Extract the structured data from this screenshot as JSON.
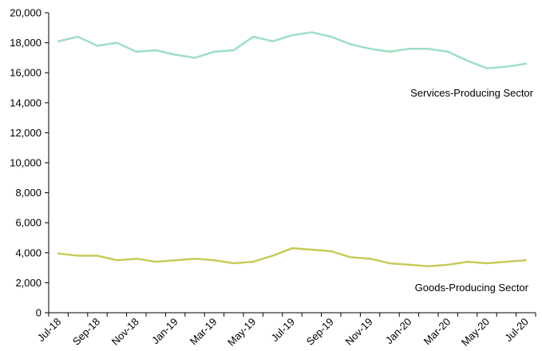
{
  "chart_data": {
    "type": "line",
    "title": "",
    "xlabel": "",
    "ylabel": "",
    "ylim": [
      0,
      20000
    ],
    "grid": false,
    "x": [
      "Jul-18",
      "Aug-18",
      "Sep-18",
      "Oct-18",
      "Nov-18",
      "Dec-18",
      "Jan-19",
      "Feb-19",
      "Mar-19",
      "Apr-19",
      "May-19",
      "Jun-19",
      "Jul-19",
      "Aug-19",
      "Sep-19",
      "Oct-19",
      "Nov-19",
      "Dec-19",
      "Jan-20",
      "Feb-20",
      "Mar-20",
      "Apr-20",
      "May-20",
      "Jun-20",
      "Jul-20"
    ],
    "x_tick_labels": [
      "Jul-18",
      "Sep-18",
      "Nov-18",
      "Jan-19",
      "Mar-19",
      "May-19",
      "Jul-19",
      "Sep-19",
      "Nov-19",
      "Jan-20",
      "Mar-20",
      "May-20",
      "Jul-20"
    ],
    "y_ticks": [
      0,
      2000,
      4000,
      6000,
      8000,
      10000,
      12000,
      14000,
      16000,
      18000,
      20000
    ],
    "y_tick_labels": [
      "0",
      "2,000",
      "4,000",
      "6,000",
      "8,000",
      "10,000",
      "12,000",
      "14,000",
      "16,000",
      "18,000",
      "20,000"
    ],
    "series": [
      {
        "name": "Services-Producing Sector",
        "color": "#9ee0c2",
        "values": [
          18100,
          18400,
          17800,
          18000,
          17400,
          17500,
          17200,
          17000,
          17400,
          17500,
          18400,
          18100,
          18500,
          18700,
          18400,
          17900,
          17600,
          17400,
          17600,
          17600,
          17400,
          16800,
          16300,
          16400,
          16600
        ]
      },
      {
        "name": "Goods-Producing Sector",
        "color": "#c6cc5a",
        "values": [
          3950,
          3800,
          3800,
          3500,
          3600,
          3400,
          3500,
          3600,
          3500,
          3300,
          3400,
          3800,
          4300,
          4200,
          4100,
          3700,
          3600,
          3300,
          3200,
          3100,
          3200,
          3400,
          3300,
          3400,
          3500
        ]
      }
    ]
  }
}
